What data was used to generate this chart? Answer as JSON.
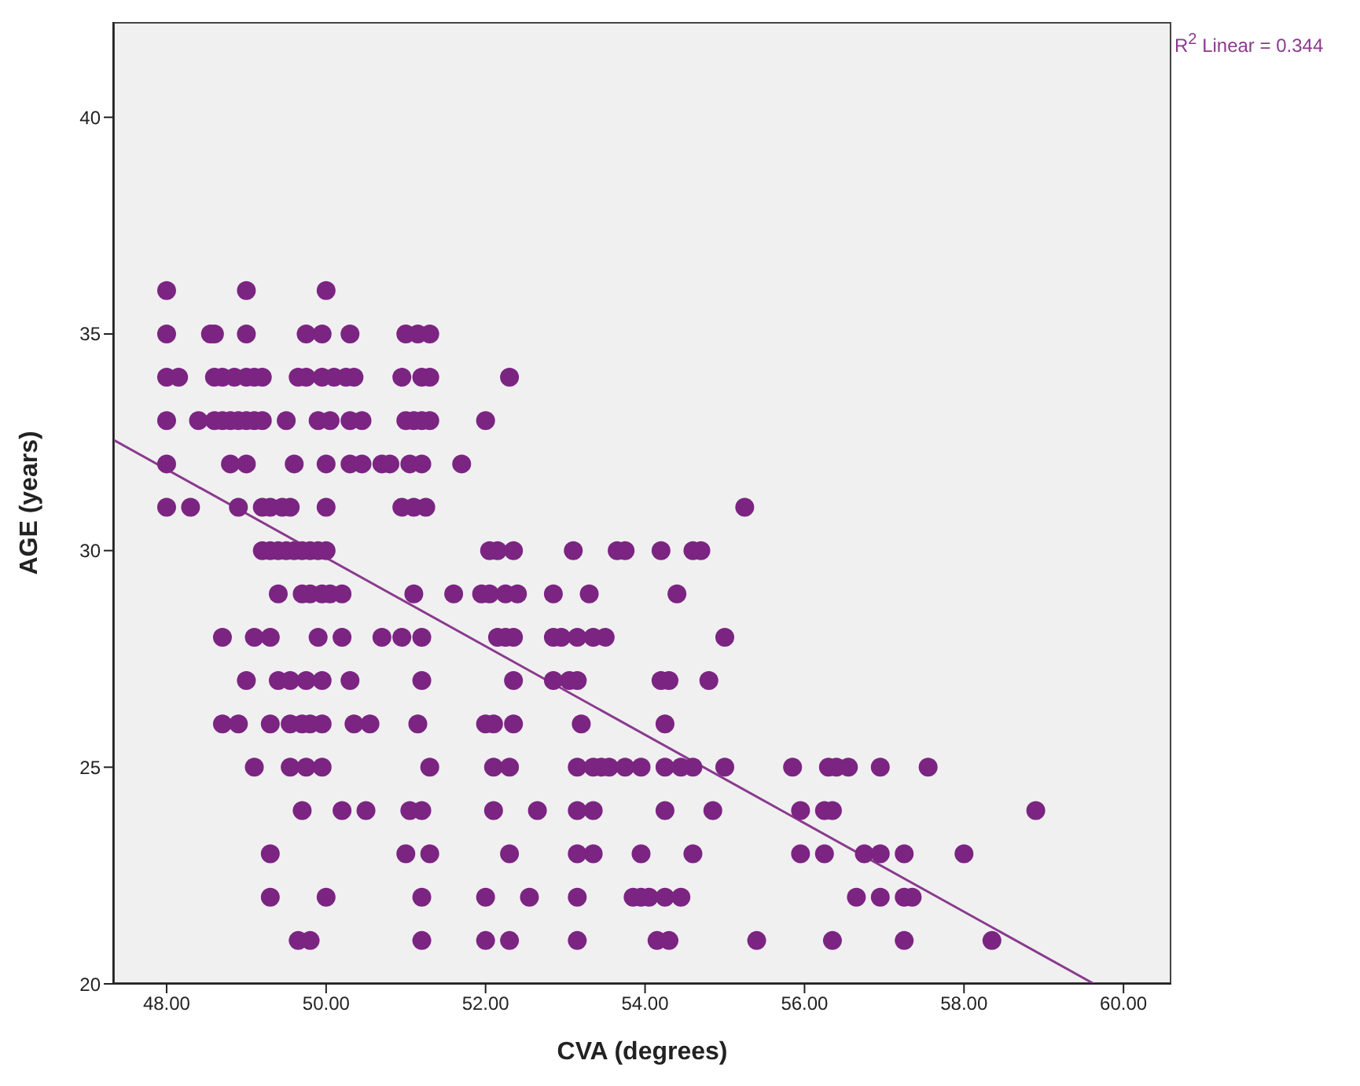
{
  "chart_data": {
    "type": "scatter",
    "xlabel": "CVA (degrees)",
    "ylabel": "AGE (years)",
    "annotations": [
      "R$^{2}$ Linear = 0.344"
    ],
    "xlim": [
      47.33,
      60.6
    ],
    "ylim": [
      20,
      42.2
    ],
    "xticks": [
      {
        "value": 48,
        "label": "48.00"
      },
      {
        "value": 50,
        "label": "50.00"
      },
      {
        "value": 52,
        "label": "52.00"
      },
      {
        "value": 54,
        "label": "54.00"
      },
      {
        "value": 56,
        "label": "56.00"
      },
      {
        "value": 58,
        "label": "58.00"
      },
      {
        "value": 60,
        "label": "60.00"
      }
    ],
    "yticks": [
      20,
      25,
      30,
      35,
      40
    ],
    "legend": false,
    "grid": false,
    "series": [
      {
        "marker": "circle",
        "color": "#7b2482",
        "x": [
          48.0,
          49.0,
          50.0,
          48.0,
          48.55,
          48.6,
          49.0,
          49.75,
          49.95,
          50.3,
          51.0,
          51.15,
          51.3,
          48.0,
          48.15,
          48.6,
          48.7,
          48.85,
          49.0,
          49.1,
          49.2,
          49.65,
          49.75,
          49.95,
          50.1,
          50.25,
          50.35,
          50.95,
          51.2,
          51.3,
          52.3,
          48.0,
          48.4,
          48.6,
          48.7,
          48.8,
          48.9,
          49.0,
          49.1,
          49.2,
          49.5,
          49.9,
          50.05,
          50.3,
          50.45,
          51.0,
          51.1,
          51.2,
          51.3,
          52.0,
          48.0,
          48.8,
          49.0,
          49.6,
          50.0,
          50.3,
          50.45,
          50.7,
          50.8,
          51.05,
          51.2,
          51.7,
          48.0,
          48.3,
          48.9,
          49.2,
          49.3,
          49.45,
          49.55,
          50.0,
          50.95,
          51.1,
          51.25,
          55.25,
          49.2,
          49.3,
          49.4,
          49.5,
          49.6,
          49.7,
          49.8,
          49.9,
          50.0,
          52.05,
          52.15,
          52.35,
          53.1,
          53.65,
          53.75,
          54.2,
          54.6,
          54.7,
          49.4,
          49.7,
          49.8,
          49.95,
          50.05,
          50.2,
          51.1,
          51.6,
          51.95,
          52.05,
          52.25,
          52.4,
          52.85,
          53.3,
          54.4,
          48.7,
          49.1,
          49.3,
          49.9,
          50.2,
          50.7,
          50.95,
          51.2,
          52.15,
          52.25,
          52.35,
          52.85,
          52.95,
          53.15,
          53.35,
          53.5,
          55.0,
          49.0,
          49.4,
          49.55,
          49.75,
          49.95,
          50.3,
          51.2,
          52.35,
          52.85,
          53.05,
          53.15,
          54.2,
          54.3,
          54.8,
          48.7,
          48.9,
          49.3,
          49.55,
          49.7,
          49.8,
          49.95,
          50.35,
          50.55,
          51.15,
          52.0,
          52.1,
          52.35,
          53.2,
          54.25,
          49.1,
          49.55,
          49.75,
          49.95,
          51.3,
          52.1,
          52.3,
          53.15,
          53.35,
          53.45,
          53.55,
          53.75,
          53.95,
          54.25,
          54.45,
          54.6,
          55.0,
          55.85,
          56.3,
          56.4,
          56.55,
          56.95,
          57.55,
          49.7,
          50.2,
          50.5,
          51.05,
          51.2,
          52.1,
          52.65,
          53.15,
          53.35,
          54.25,
          54.85,
          55.95,
          56.25,
          56.35,
          58.9,
          49.3,
          51.0,
          51.3,
          52.3,
          53.15,
          53.35,
          53.95,
          54.6,
          55.95,
          56.25,
          56.75,
          56.95,
          57.25,
          58.0,
          49.3,
          50.0,
          51.2,
          52.0,
          52.55,
          53.15,
          53.85,
          53.95,
          54.05,
          54.25,
          54.45,
          56.65,
          56.95,
          57.25,
          57.35,
          49.65,
          49.8,
          51.2,
          52.0,
          52.3,
          53.15,
          54.15,
          54.3,
          55.4,
          56.35,
          57.25,
          58.35
        ],
        "values": [
          36,
          36,
          36,
          35,
          35,
          35,
          35,
          35,
          35,
          35,
          35,
          35,
          35,
          34,
          34,
          34,
          34,
          34,
          34,
          34,
          34,
          34,
          34,
          34,
          34,
          34,
          34,
          34,
          34,
          34,
          34,
          33,
          33,
          33,
          33,
          33,
          33,
          33,
          33,
          33,
          33,
          33,
          33,
          33,
          33,
          33,
          33,
          33,
          33,
          33,
          32,
          32,
          32,
          32,
          32,
          32,
          32,
          32,
          32,
          32,
          32,
          32,
          31,
          31,
          31,
          31,
          31,
          31,
          31,
          31,
          31,
          31,
          31,
          31,
          30,
          30,
          30,
          30,
          30,
          30,
          30,
          30,
          30,
          30,
          30,
          30,
          30,
          30,
          30,
          30,
          30,
          30,
          29,
          29,
          29,
          29,
          29,
          29,
          29,
          29,
          29,
          29,
          29,
          29,
          29,
          29,
          29,
          28,
          28,
          28,
          28,
          28,
          28,
          28,
          28,
          28,
          28,
          28,
          28,
          28,
          28,
          28,
          28,
          28,
          27,
          27,
          27,
          27,
          27,
          27,
          27,
          27,
          27,
          27,
          27,
          27,
          27,
          27,
          26,
          26,
          26,
          26,
          26,
          26,
          26,
          26,
          26,
          26,
          26,
          26,
          26,
          26,
          26,
          25,
          25,
          25,
          25,
          25,
          25,
          25,
          25,
          25,
          25,
          25,
          25,
          25,
          25,
          25,
          25,
          25,
          25,
          25,
          25,
          25,
          25,
          25,
          24,
          24,
          24,
          24,
          24,
          24,
          24,
          24,
          24,
          24,
          24,
          24,
          24,
          24,
          24,
          23,
          23,
          23,
          23,
          23,
          23,
          23,
          23,
          23,
          23,
          23,
          23,
          23,
          23,
          22,
          22,
          22,
          22,
          22,
          22,
          22,
          22,
          22,
          22,
          22,
          22,
          22,
          22,
          22,
          21,
          21,
          21,
          21,
          21,
          21,
          21,
          21,
          21,
          21,
          21,
          21
        ]
      },
      {
        "type": "line",
        "color": "#8a3a8e",
        "x": [
          47.33,
          59.63
        ],
        "values": [
          32.56,
          20
        ]
      }
    ]
  }
}
